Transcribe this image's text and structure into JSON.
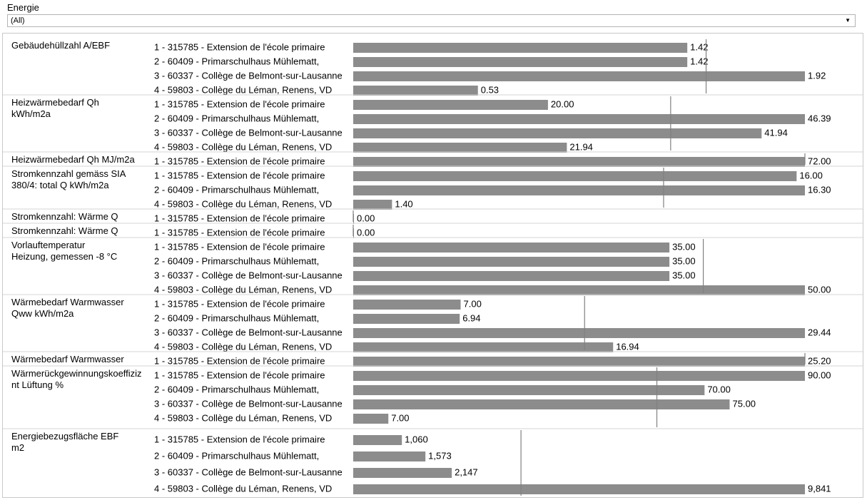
{
  "filter": {
    "label": "Energie",
    "value": "(All)"
  },
  "colors": {
    "bar": "#8c8c8c",
    "ref_line": "#808080",
    "divider": "#d4d4d4"
  },
  "chart_data": {
    "type": "bar",
    "orientation": "horizontal",
    "groups": [
      {
        "metric": "Gebäudehüllzahl A/EBF",
        "ref": 1.5,
        "rows": [
          {
            "label": "1 - 315785 - Extension de l'école primaire",
            "value": 1.42,
            "value_label": "1.42"
          },
          {
            "label": "2 - 60409 - Primarschulhaus Mühlematt,",
            "value": 1.42,
            "value_label": "1.42"
          },
          {
            "label": "3 - 60337 - Collège de Belmont-sur-Lausanne",
            "value": 1.92,
            "value_label": "1.92"
          },
          {
            "label": "4 - 59803 - Collège du Léman, Renens, VD",
            "value": 0.53,
            "value_label": "0.53"
          }
        ]
      },
      {
        "metric": "Heizwärmebedarf Qh kWh/m2a",
        "ref": 32.6,
        "rows": [
          {
            "label": "1 - 315785 - Extension de l'école primaire",
            "value": 20.0,
            "value_label": "20.00"
          },
          {
            "label": "2 - 60409 - Primarschulhaus Mühlematt,",
            "value": 46.39,
            "value_label": "46.39"
          },
          {
            "label": "3 - 60337 - Collège de Belmont-sur-Lausanne",
            "value": 41.94,
            "value_label": "41.94"
          },
          {
            "label": "4 - 59803 - Collège du Léman, Renens, VD",
            "value": 21.94,
            "value_label": "21.94"
          }
        ]
      },
      {
        "metric": "Heizwärmebedarf Qh MJ/m2a",
        "ref": 72.0,
        "rows": [
          {
            "label": "1 - 315785 - Extension de l'école primaire",
            "value": 72.0,
            "value_label": "72.00"
          }
        ]
      },
      {
        "metric": "Stromkennzahl gemäss SIA 380/4: total Q kWh/m2a",
        "ref": 11.2,
        "rows": [
          {
            "label": "1 - 315785 - Extension de l'école primaire",
            "value": 16.0,
            "value_label": "16.00"
          },
          {
            "label": "2 - 60409 - Primarschulhaus Mühlematt,",
            "value": 16.3,
            "value_label": "16.30"
          },
          {
            "label": "4 - 59803 - Collège du Léman, Renens, VD",
            "value": 1.4,
            "value_label": "1.40"
          }
        ]
      },
      {
        "metric": "Stromkennzahl: Wärme Q",
        "ref": 0,
        "rows": [
          {
            "label": "1 - 315785 - Extension de l'école primaire",
            "value": 0.0,
            "value_label": "0.00"
          }
        ]
      },
      {
        "metric": "Stromkennzahl: Wärme Q",
        "ref": 0,
        "rows": [
          {
            "label": "1 - 315785 - Extension de l'école primaire",
            "value": 0.0,
            "value_label": "0.00"
          }
        ]
      },
      {
        "metric": "Vorlauftemperatur Heizung, gemessen -8 °C",
        "ref": 38.75,
        "rows": [
          {
            "label": "1 - 315785 - Extension de l'école primaire",
            "value": 35.0,
            "value_label": "35.00"
          },
          {
            "label": "2 - 60409 - Primarschulhaus Mühlematt,",
            "value": 35.0,
            "value_label": "35.00"
          },
          {
            "label": "3 - 60337 - Collège de Belmont-sur-Lausanne",
            "value": 35.0,
            "value_label": "35.00"
          },
          {
            "label": "4 - 59803 - Collège du Léman, Renens, VD",
            "value": 50.0,
            "value_label": "50.00"
          }
        ]
      },
      {
        "metric": "Wärmebedarf Warmwasser Qww kWh/m2a",
        "ref": 15.08,
        "rows": [
          {
            "label": "1 - 315785 - Extension de l'école primaire",
            "value": 7.0,
            "value_label": "7.00"
          },
          {
            "label": "2 - 60409 - Primarschulhaus Mühlematt,",
            "value": 6.94,
            "value_label": "6.94"
          },
          {
            "label": "3 - 60337 - Collège de Belmont-sur-Lausanne",
            "value": 29.44,
            "value_label": "29.44"
          },
          {
            "label": "4 - 59803 - Collège du Léman, Renens, VD",
            "value": 16.94,
            "value_label": "16.94"
          }
        ]
      },
      {
        "metric": "Wärmebedarf Warmwasser Qw..",
        "ref": 25.2,
        "rows": [
          {
            "label": "1 - 315785 - Extension de l'école primaire",
            "value": 25.2,
            "value_label": "25.20"
          }
        ]
      },
      {
        "metric": "Wärmerückgewinnungskoeffiziz nt Lüftung %",
        "ref": 60.5,
        "rows": [
          {
            "label": "1 - 315785 - Extension de l'école primaire",
            "value": 90.0,
            "value_label": "90.00"
          },
          {
            "label": "2 - 60409 - Primarschulhaus Mühlematt,",
            "value": 70.0,
            "value_label": "70.00"
          },
          {
            "label": "3 - 60337 - Collège de Belmont-sur-Lausanne",
            "value": 75.0,
            "value_label": "75.00"
          },
          {
            "label": "4 - 59803 - Collège du Léman, Renens, VD",
            "value": 7.0,
            "value_label": "7.00"
          }
        ]
      },
      {
        "metric": "Energiebezugsfläche EBF m2",
        "ref": 3655,
        "rows": [
          {
            "label": "1 - 315785 - Extension de l'école primaire",
            "value": 1060,
            "value_label": "1,060"
          },
          {
            "label": "2 - 60409 - Primarschulhaus Mühlematt,",
            "value": 1573,
            "value_label": "1,573"
          },
          {
            "label": "3 - 60337 - Collège de Belmont-sur-Lausanne",
            "value": 2147,
            "value_label": "2,147"
          },
          {
            "label": "4 - 59803 - Collège du Léman, Renens, VD",
            "value": 9841,
            "value_label": "9,841"
          }
        ]
      }
    ]
  }
}
